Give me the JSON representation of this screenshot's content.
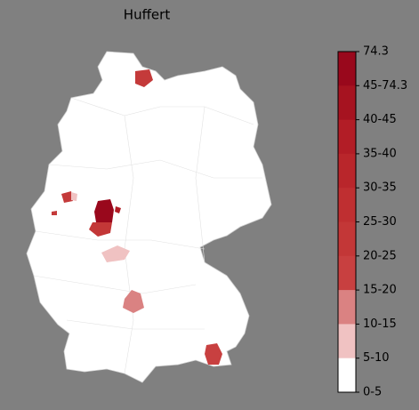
{
  "title": "Huffert",
  "colorbar": {
    "ticks": [
      "74.3",
      "45-74.3",
      "40-45",
      "35-40",
      "30-35",
      "25-30",
      "20-25",
      "15-20",
      "10-15",
      "5-10",
      "0-5"
    ],
    "colors": [
      "#99081c",
      "#a61320",
      "#b21d26",
      "#b9262b",
      "#bf2f31",
      "#c33737",
      "#c84040",
      "#da8282",
      "#f0c2c2",
      "#ffffff"
    ]
  }
}
